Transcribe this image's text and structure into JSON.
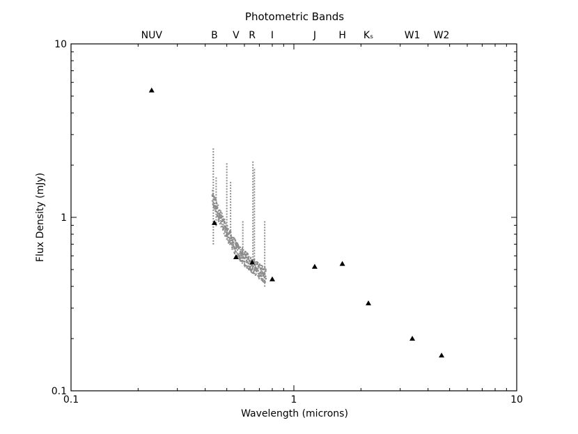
{
  "chart_data": {
    "type": "scatter",
    "title": "Photometric Bands",
    "xlabel": "Wavelength (microns)",
    "ylabel": "Flux Density (mJy)",
    "xscale": "log",
    "yscale": "log",
    "xlim": [
      0.1,
      10
    ],
    "ylim": [
      0.1,
      10
    ],
    "grid": false,
    "x_ticks": [
      {
        "value": 0.1,
        "label": "0.1"
      },
      {
        "value": 1,
        "label": "1"
      },
      {
        "value": 10,
        "label": "10"
      }
    ],
    "y_ticks": [
      {
        "value": 0.1,
        "label": "0.1"
      },
      {
        "value": 1,
        "label": "1"
      },
      {
        "value": 10,
        "label": "10"
      }
    ],
    "bands": [
      {
        "label": "NUV",
        "x": 0.23
      },
      {
        "label": "B",
        "x": 0.44
      },
      {
        "label": "V",
        "x": 0.55
      },
      {
        "label": "R",
        "x": 0.65
      },
      {
        "label": "I",
        "x": 0.8
      },
      {
        "label": "J",
        "x": 1.24
      },
      {
        "label": "H",
        "x": 1.65
      },
      {
        "label": "Kₛ",
        "x": 2.16
      },
      {
        "label": "W1",
        "x": 3.4
      },
      {
        "label": "W2",
        "x": 4.6
      }
    ],
    "series": [
      {
        "marker": "triangle",
        "color": "#000000",
        "points": [
          {
            "x": 0.23,
            "y": 5.4
          },
          {
            "x": 0.44,
            "y": 0.93
          },
          {
            "x": 0.55,
            "y": 0.59
          },
          {
            "x": 0.65,
            "y": 0.55
          },
          {
            "x": 0.8,
            "y": 0.44
          },
          {
            "x": 1.24,
            "y": 0.52
          },
          {
            "x": 1.65,
            "y": 0.54
          },
          {
            "x": 2.16,
            "y": 0.32
          },
          {
            "x": 3.4,
            "y": 0.2
          },
          {
            "x": 4.6,
            "y": 0.16
          }
        ]
      },
      {
        "marker": "dot",
        "color": "#8c8c8c",
        "spectrum_trend": [
          {
            "x": 0.43,
            "y": 1.3
          },
          {
            "x": 0.46,
            "y": 1.05
          },
          {
            "x": 0.5,
            "y": 0.82
          },
          {
            "x": 0.55,
            "y": 0.66
          },
          {
            "x": 0.6,
            "y": 0.58
          },
          {
            "x": 0.65,
            "y": 0.53
          },
          {
            "x": 0.7,
            "y": 0.49
          },
          {
            "x": 0.75,
            "y": 0.46
          }
        ],
        "spikes": [
          {
            "x": 0.435,
            "ymin": 0.7,
            "ymax": 2.5
          },
          {
            "x": 0.448,
            "ymin": 0.9,
            "ymax": 1.7
          },
          {
            "x": 0.5,
            "ymin": 0.75,
            "ymax": 2.05
          },
          {
            "x": 0.52,
            "ymin": 0.75,
            "ymax": 1.6
          },
          {
            "x": 0.59,
            "ymin": 0.6,
            "ymax": 0.95
          },
          {
            "x": 0.655,
            "ymin": 0.55,
            "ymax": 2.1
          },
          {
            "x": 0.665,
            "ymin": 0.55,
            "ymax": 1.9
          },
          {
            "x": 0.74,
            "ymin": 0.4,
            "ymax": 0.95
          }
        ]
      }
    ]
  }
}
